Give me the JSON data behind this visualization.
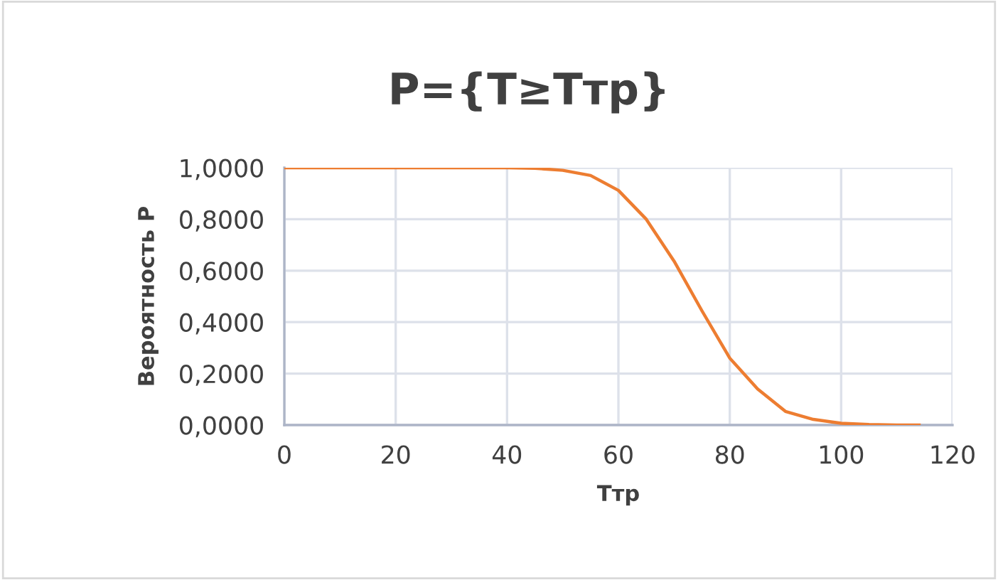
{
  "chart_data": {
    "type": "line",
    "title": "P={T≥Tтр}",
    "xlabel": "Tтр",
    "ylabel": "Вероятность P",
    "x": [
      0,
      10,
      20,
      30,
      40,
      45,
      50,
      55,
      60,
      65,
      70,
      75,
      80,
      85,
      90,
      95,
      100,
      105,
      110,
      114
    ],
    "series": [
      {
        "color": "#ed7d31",
        "values": [
          1.0,
          1.0,
          1.0,
          1.0,
          1.0,
          0.998,
          0.99,
          0.97,
          0.912,
          0.8,
          0.637,
          0.444,
          0.26,
          0.14,
          0.053,
          0.022,
          0.007,
          0.002,
          0.0,
          0.0
        ]
      }
    ],
    "xlim": [
      0,
      120
    ],
    "xticks": [
      0,
      20,
      40,
      60,
      80,
      100,
      120
    ],
    "ylim": [
      0,
      1
    ],
    "yticks": [
      {
        "value": 0,
        "label": "0,0000"
      },
      {
        "value": 0.2,
        "label": "0,2000"
      },
      {
        "value": 0.4,
        "label": "0,4000"
      },
      {
        "value": 0.6,
        "label": "0,6000"
      },
      {
        "value": 0.8,
        "label": "0,8000"
      },
      {
        "value": 1,
        "label": "1,0000"
      }
    ],
    "grid": true,
    "marker": "none",
    "line_style": "solid"
  }
}
